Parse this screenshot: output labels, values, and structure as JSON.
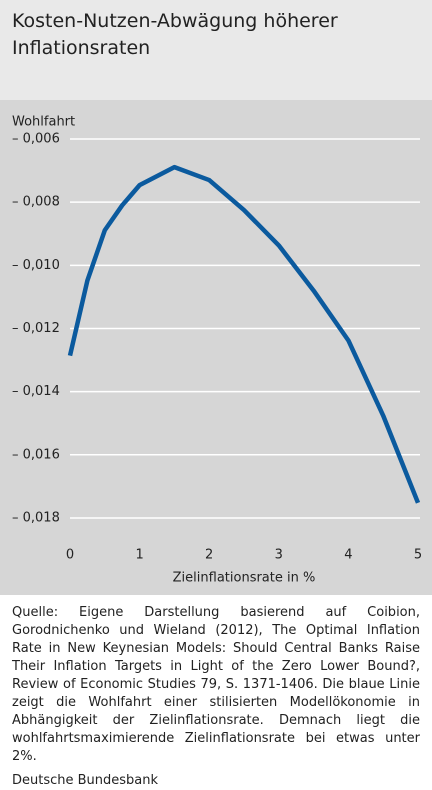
{
  "chart_data": {
    "type": "line",
    "title": "Kosten-Nutzen-Abwägung höherer Inflationsraten",
    "y_label": "Wohlfahrt",
    "x_label": "Zielinflationsrate in %",
    "x": [
      0,
      0.25,
      0.5,
      0.75,
      1,
      1.5,
      2,
      2.5,
      3,
      3.5,
      4,
      4.5,
      5
    ],
    "values": [
      -0.01286,
      -0.01048,
      -0.00889,
      -0.0081,
      -0.00746,
      -0.00689,
      -0.0073,
      -0.00825,
      -0.00937,
      -0.0108,
      -0.01238,
      -0.01476,
      -0.01752
    ],
    "color": "#0b5a9e",
    "xlim": [
      0,
      5
    ],
    "xticks": [
      0,
      1,
      2,
      3,
      4,
      5
    ],
    "ylim": [
      -0.0185,
      -0.006
    ],
    "yticks": [
      {
        "value": -0.006,
        "label": "– 0,006"
      },
      {
        "value": -0.008,
        "label": "– 0,008"
      },
      {
        "value": -0.01,
        "label": "– 0,010"
      },
      {
        "value": -0.012,
        "label": "– 0,012"
      },
      {
        "value": -0.014,
        "label": "– 0,014"
      },
      {
        "value": -0.016,
        "label": "– 0,016"
      },
      {
        "value": -0.018,
        "label": "– 0,018"
      }
    ],
    "grid": true,
    "note": "Quelle: Eigene Darstellung basierend auf Coibion, Gorodnichenko und Wieland (2012), The Optimal Inflation Rate in New Keynesian Models: Should Central Banks Raise Their Inflation Targets in Light of the Zero Lower Bound?, Review of Economic Studies 79, S. 1371-1406. Die blaue Linie zeigt die Wohlfahrt einer stilisierten Modellökonomie in Abhängigkeit der Zielinflationsrate. Demnach liegt die wohlfahrtsmaximierende Zielinflationsrate bei etwas unter 2%.",
    "source": "Deutsche Bundesbank"
  }
}
